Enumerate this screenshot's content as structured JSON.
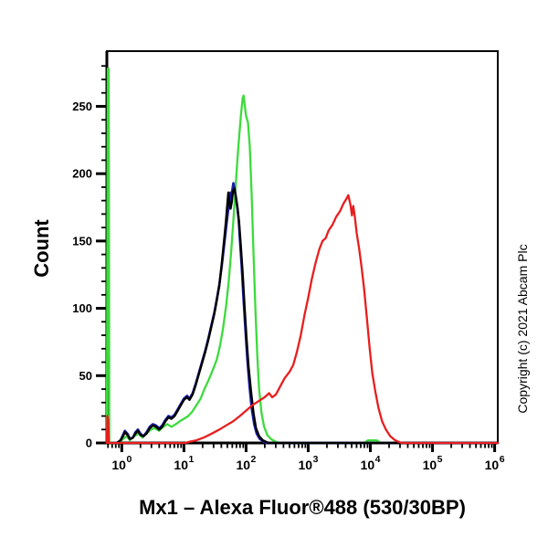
{
  "figure": {
    "y_axis_title": "Count",
    "x_axis_title": "Mx1 – Alexa Fluor®488 (530/30BP)",
    "copyright": "Copyright (c) 2021 Abcam Plc",
    "background_color": "#ffffff",
    "axis_color": "#000000"
  },
  "chart_data": {
    "type": "line",
    "subtype": "flow-cytometry-histogram",
    "title": "",
    "xlabel": "Mx1 – Alexa Fluor®488 (530/30BP)",
    "ylabel": "Count",
    "x_scale": "log10",
    "x_range_log10": [
      -0.24,
      6.05
    ],
    "x_major_tick_exponents": [
      0,
      1,
      2,
      3,
      4,
      5,
      6
    ],
    "x_major_tick_labels": [
      "10^0",
      "10^1",
      "10^2",
      "10^3",
      "10^4",
      "10^5",
      "10^6"
    ],
    "y_range": [
      0,
      291
    ],
    "y_major_ticks": [
      0,
      50,
      100,
      150,
      200,
      250
    ],
    "y_minor_tick_step": 10,
    "y_minor_tick_max": 280,
    "grid": false,
    "legend": "none",
    "series": [
      {
        "name": "green-control-curve",
        "color": "#3cdb3c",
        "stroke_width": 2.3,
        "points": [
          [
            -0.24,
            0
          ],
          [
            -0.225,
            278
          ],
          [
            -0.21,
            278
          ],
          [
            -0.2,
            0
          ],
          [
            -0.05,
            0
          ],
          [
            0.02,
            3
          ],
          [
            0.08,
            5
          ],
          [
            0.13,
            2
          ],
          [
            0.2,
            5
          ],
          [
            0.27,
            7
          ],
          [
            0.33,
            4
          ],
          [
            0.4,
            7
          ],
          [
            0.47,
            10
          ],
          [
            0.53,
            11
          ],
          [
            0.6,
            9
          ],
          [
            0.67,
            12
          ],
          [
            0.73,
            14
          ],
          [
            0.8,
            12
          ],
          [
            0.87,
            14
          ],
          [
            0.93,
            16
          ],
          [
            1.0,
            18
          ],
          [
            1.07,
            20
          ],
          [
            1.13,
            23
          ],
          [
            1.2,
            28
          ],
          [
            1.27,
            33
          ],
          [
            1.33,
            40
          ],
          [
            1.4,
            47
          ],
          [
            1.47,
            55
          ],
          [
            1.53,
            62
          ],
          [
            1.58,
            72
          ],
          [
            1.63,
            85
          ],
          [
            1.68,
            102
          ],
          [
            1.72,
            120
          ],
          [
            1.76,
            142
          ],
          [
            1.8,
            168
          ],
          [
            1.83,
            190
          ],
          [
            1.86,
            210
          ],
          [
            1.89,
            228
          ],
          [
            1.92,
            245
          ],
          [
            1.945,
            256
          ],
          [
            1.96,
            258
          ],
          [
            1.98,
            250
          ],
          [
            2.0,
            243
          ],
          [
            2.03,
            238
          ],
          [
            2.06,
            220
          ],
          [
            2.09,
            185
          ],
          [
            2.12,
            140
          ],
          [
            2.15,
            100
          ],
          [
            2.18,
            65
          ],
          [
            2.21,
            40
          ],
          [
            2.25,
            22
          ],
          [
            2.29,
            12
          ],
          [
            2.34,
            6
          ],
          [
            2.4,
            3
          ],
          [
            2.47,
            1
          ],
          [
            2.55,
            0
          ],
          [
            3.9,
            0
          ],
          [
            3.96,
            2
          ],
          [
            4.1,
            2
          ],
          [
            4.17,
            0
          ],
          [
            6.05,
            0
          ]
        ]
      },
      {
        "name": "navy-control-curve",
        "color": "#1c1caa",
        "stroke_width": 2.6,
        "points": [
          [
            -0.08,
            0
          ],
          [
            -0.02,
            2
          ],
          [
            0.02,
            6
          ],
          [
            0.05,
            9
          ],
          [
            0.09,
            7
          ],
          [
            0.13,
            3
          ],
          [
            0.18,
            4
          ],
          [
            0.22,
            8
          ],
          [
            0.26,
            10
          ],
          [
            0.3,
            7
          ],
          [
            0.35,
            5
          ],
          [
            0.4,
            8
          ],
          [
            0.45,
            12
          ],
          [
            0.5,
            14
          ],
          [
            0.55,
            13
          ],
          [
            0.6,
            11
          ],
          [
            0.65,
            13
          ],
          [
            0.7,
            17
          ],
          [
            0.75,
            20
          ],
          [
            0.8,
            19
          ],
          [
            0.85,
            21
          ],
          [
            0.9,
            25
          ],
          [
            0.95,
            29
          ],
          [
            1.0,
            33
          ],
          [
            1.05,
            35
          ],
          [
            1.09,
            33
          ],
          [
            1.14,
            37
          ],
          [
            1.19,
            44
          ],
          [
            1.24,
            52
          ],
          [
            1.29,
            60
          ],
          [
            1.34,
            68
          ],
          [
            1.39,
            77
          ],
          [
            1.44,
            87
          ],
          [
            1.49,
            97
          ],
          [
            1.53,
            107
          ],
          [
            1.57,
            118
          ],
          [
            1.61,
            132
          ],
          [
            1.65,
            148
          ],
          [
            1.68,
            160
          ],
          [
            1.71,
            172
          ],
          [
            1.735,
            182
          ],
          [
            1.75,
            186
          ],
          [
            1.765,
            179
          ],
          [
            1.78,
            188
          ],
          [
            1.795,
            193
          ],
          [
            1.81,
            190
          ],
          [
            1.83,
            184
          ],
          [
            1.855,
            176
          ],
          [
            1.88,
            166
          ],
          [
            1.9,
            152
          ],
          [
            1.93,
            130
          ],
          [
            1.96,
            106
          ],
          [
            1.99,
            84
          ],
          [
            2.02,
            62
          ],
          [
            2.055,
            42
          ],
          [
            2.09,
            26
          ],
          [
            2.13,
            14
          ],
          [
            2.17,
            7
          ],
          [
            2.22,
            3
          ],
          [
            2.28,
            1
          ],
          [
            2.33,
            0
          ],
          [
            6.05,
            0
          ]
        ]
      },
      {
        "name": "black-control-curve",
        "color": "#000000",
        "stroke_width": 2.4,
        "points": [
          [
            -0.08,
            0
          ],
          [
            -0.02,
            2
          ],
          [
            0.02,
            5
          ],
          [
            0.05,
            8
          ],
          [
            0.09,
            6
          ],
          [
            0.13,
            3
          ],
          [
            0.18,
            4
          ],
          [
            0.22,
            7
          ],
          [
            0.26,
            9
          ],
          [
            0.3,
            6
          ],
          [
            0.35,
            5
          ],
          [
            0.4,
            7
          ],
          [
            0.45,
            11
          ],
          [
            0.5,
            13
          ],
          [
            0.55,
            12
          ],
          [
            0.6,
            10
          ],
          [
            0.65,
            12
          ],
          [
            0.7,
            16
          ],
          [
            0.75,
            19
          ],
          [
            0.8,
            18
          ],
          [
            0.85,
            20
          ],
          [
            0.9,
            24
          ],
          [
            0.95,
            28
          ],
          [
            1.0,
            32
          ],
          [
            1.05,
            34
          ],
          [
            1.09,
            32
          ],
          [
            1.14,
            36
          ],
          [
            1.19,
            43
          ],
          [
            1.24,
            51
          ],
          [
            1.29,
            59
          ],
          [
            1.34,
            67
          ],
          [
            1.39,
            76
          ],
          [
            1.44,
            86
          ],
          [
            1.49,
            96
          ],
          [
            1.53,
            106
          ],
          [
            1.57,
            117
          ],
          [
            1.61,
            134
          ],
          [
            1.645,
            150
          ],
          [
            1.675,
            164
          ],
          [
            1.7,
            178
          ],
          [
            1.715,
            186
          ],
          [
            1.73,
            179
          ],
          [
            1.75,
            174
          ],
          [
            1.77,
            179
          ],
          [
            1.79,
            187
          ],
          [
            1.815,
            189
          ],
          [
            1.84,
            182
          ],
          [
            1.865,
            174
          ],
          [
            1.89,
            163
          ],
          [
            1.915,
            147
          ],
          [
            1.945,
            126
          ],
          [
            1.975,
            102
          ],
          [
            2.005,
            79
          ],
          [
            2.04,
            57
          ],
          [
            2.08,
            38
          ],
          [
            2.12,
            22
          ],
          [
            2.16,
            11
          ],
          [
            2.21,
            5
          ],
          [
            2.27,
            2
          ],
          [
            2.36,
            0
          ],
          [
            6.05,
            0
          ]
        ]
      },
      {
        "name": "red-sample-curve",
        "color": "#e81e1e",
        "stroke_width": 2.3,
        "points": [
          [
            -0.24,
            0
          ],
          [
            -0.232,
            20
          ],
          [
            -0.218,
            17
          ],
          [
            -0.208,
            0
          ],
          [
            0.0,
            0
          ],
          [
            1.02,
            0
          ],
          [
            1.1,
            1
          ],
          [
            1.2,
            2
          ],
          [
            1.32,
            4
          ],
          [
            1.45,
            7
          ],
          [
            1.57,
            10
          ],
          [
            1.68,
            13
          ],
          [
            1.79,
            16
          ],
          [
            1.9,
            20
          ],
          [
            2.0,
            24
          ],
          [
            2.1,
            28
          ],
          [
            2.2,
            31
          ],
          [
            2.3,
            34
          ],
          [
            2.37,
            37
          ],
          [
            2.42,
            34
          ],
          [
            2.48,
            36
          ],
          [
            2.55,
            42
          ],
          [
            2.62,
            48
          ],
          [
            2.7,
            53
          ],
          [
            2.76,
            58
          ],
          [
            2.82,
            68
          ],
          [
            2.88,
            80
          ],
          [
            2.94,
            95
          ],
          [
            3.0,
            108
          ],
          [
            3.06,
            122
          ],
          [
            3.12,
            134
          ],
          [
            3.18,
            144
          ],
          [
            3.23,
            150
          ],
          [
            3.28,
            152
          ],
          [
            3.33,
            158
          ],
          [
            3.39,
            162
          ],
          [
            3.45,
            168
          ],
          [
            3.51,
            172
          ],
          [
            3.57,
            178
          ],
          [
            3.61,
            181
          ],
          [
            3.645,
            184
          ],
          [
            3.68,
            177
          ],
          [
            3.705,
            169
          ],
          [
            3.725,
            176
          ],
          [
            3.75,
            168
          ],
          [
            3.78,
            156
          ],
          [
            3.82,
            144
          ],
          [
            3.86,
            130
          ],
          [
            3.9,
            114
          ],
          [
            3.945,
            92
          ],
          [
            3.99,
            70
          ],
          [
            4.03,
            52
          ],
          [
            4.08,
            38
          ],
          [
            4.13,
            26
          ],
          [
            4.19,
            16
          ],
          [
            4.25,
            10
          ],
          [
            4.32,
            5
          ],
          [
            4.4,
            2
          ],
          [
            4.5,
            0
          ],
          [
            6.05,
            0
          ]
        ]
      }
    ]
  }
}
